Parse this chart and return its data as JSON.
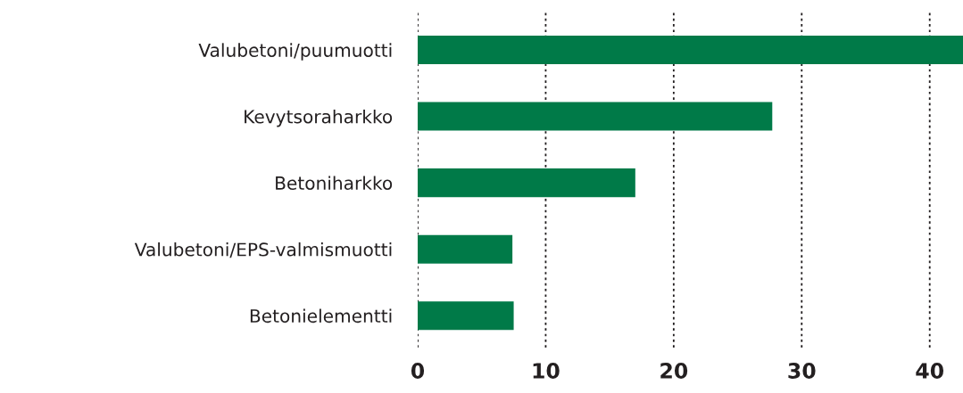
{
  "chart_data": {
    "type": "bar",
    "orientation": "horizontal",
    "categories": [
      "Valubetoni/puumuotti",
      "Kevytsoraharkko",
      "Betoniharkko",
      "Valubetoni/EPS-valmismuotti",
      "Betonielementti"
    ],
    "values": [
      42.6,
      27.7,
      17.0,
      7.4,
      7.5
    ],
    "color": "#007a48",
    "xlim": [
      0,
      42.6
    ],
    "xticks": [
      0,
      10,
      20,
      30,
      40
    ],
    "grid": "x"
  }
}
